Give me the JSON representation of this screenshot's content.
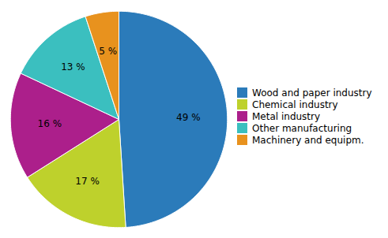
{
  "chart_data": {
    "type": "pie",
    "categories": [
      "Wood and paper industry",
      "Chemical industry",
      "Metal industry",
      "Other manufacturing",
      "Machinery  and equipm."
    ],
    "values": [
      49,
      17,
      16,
      13,
      5
    ],
    "value_labels": [
      "49 %",
      "17 %",
      "16 %",
      "13 %",
      "5 %"
    ],
    "colors": [
      "#2b7bba",
      "#bed12c",
      "#ac1f8b",
      "#3bbfbf",
      "#e8921e"
    ],
    "data_labels": true,
    "legend": "right"
  }
}
